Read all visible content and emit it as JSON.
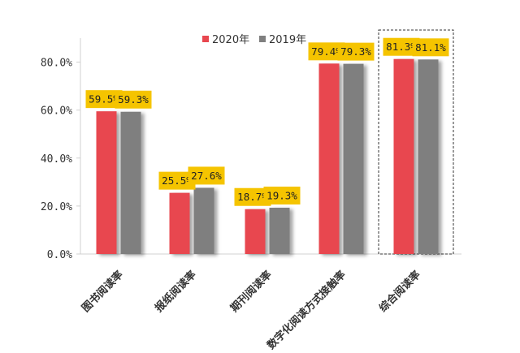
{
  "chart_data": {
    "type": "bar",
    "categories": [
      "图书阅读率",
      "报纸阅读率",
      "期刊阅读率",
      "数字化阅读方式接触率",
      "综合阅读率"
    ],
    "series": [
      {
        "name": "2020年",
        "color": "#e8474f",
        "values": [
          59.5,
          25.5,
          18.7,
          79.4,
          81.3
        ],
        "labels": [
          "59.5%",
          "25.5%",
          "18.7%",
          "79.4%",
          "81.3%"
        ]
      },
      {
        "name": "2019年",
        "color": "#7f7f7f",
        "values": [
          59.3,
          27.6,
          19.3,
          79.3,
          81.1
        ],
        "labels": [
          "59.3%",
          "27.6%",
          "19.3%",
          "79.3%",
          "81.1%"
        ]
      }
    ],
    "yticks": [
      0,
      20,
      40,
      60,
      80
    ],
    "ytick_labels": [
      "0.0%",
      "20.0%",
      "40.0%",
      "60.0%",
      "80.0%"
    ],
    "ylim": [
      0,
      90
    ],
    "label_bg_color": "#f5c400",
    "highlight_category": "综合阅读率",
    "legend_position": "top-right"
  }
}
